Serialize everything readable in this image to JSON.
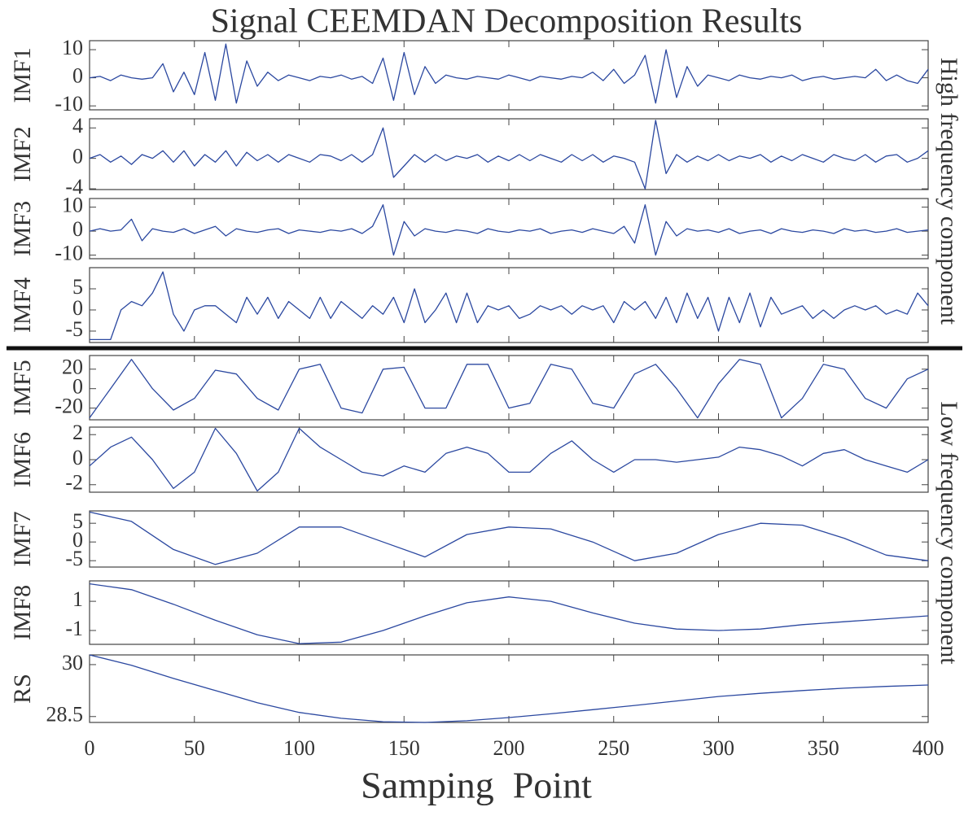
{
  "chart_data": [
    {
      "type": "line",
      "title": "Signal CEEMDAN Decomposition Results",
      "ylabel": "IMF1",
      "color": "#2b48a0",
      "x": [
        0,
        5,
        10,
        15,
        20,
        25,
        30,
        35,
        40,
        45,
        50,
        55,
        60,
        65,
        70,
        75,
        80,
        85,
        90,
        95,
        100,
        105,
        110,
        115,
        120,
        125,
        130,
        135,
        140,
        145,
        150,
        155,
        160,
        165,
        170,
        175,
        180,
        185,
        190,
        195,
        200,
        205,
        210,
        215,
        220,
        225,
        230,
        235,
        240,
        245,
        250,
        255,
        260,
        265,
        270,
        275,
        280,
        285,
        290,
        295,
        300,
        305,
        310,
        315,
        320,
        325,
        330,
        335,
        340,
        345,
        350,
        355,
        360,
        365,
        370,
        375,
        380,
        385,
        390,
        395,
        400
      ],
      "values": [
        0,
        0.5,
        -1,
        1,
        0,
        -0.5,
        0,
        5,
        -5,
        2,
        -6,
        9,
        -8,
        12,
        -9,
        6,
        -3,
        2,
        -1,
        1,
        0,
        -1,
        0.5,
        0,
        1,
        -0.5,
        0.5,
        -2,
        7,
        -8,
        9,
        -6,
        4,
        -2,
        1,
        0,
        -0.5,
        0.5,
        0,
        -0.5,
        1,
        0,
        -1,
        0.5,
        0,
        -0.5,
        0.5,
        0,
        2,
        -1,
        3,
        -2,
        1,
        8,
        -9,
        10,
        -7,
        4,
        -3,
        1,
        0,
        -1,
        1,
        0,
        -0.5,
        0.5,
        0,
        1,
        -1,
        0,
        0.5,
        -0.5,
        0,
        0.5,
        0,
        3,
        -1,
        1,
        -1,
        -2,
        3
      ],
      "xlim": [
        0,
        400
      ],
      "xticks": [
        0,
        50,
        100,
        150,
        200,
        250,
        300,
        350,
        400
      ],
      "ylim": [
        -11.4,
        13.2
      ],
      "yticks": [
        -10,
        0,
        10
      ]
    },
    {
      "type": "line",
      "ylabel": "IMF2",
      "color": "#2b48a0",
      "x": [
        0,
        5,
        10,
        15,
        20,
        25,
        30,
        35,
        40,
        45,
        50,
        55,
        60,
        65,
        70,
        75,
        80,
        85,
        90,
        95,
        100,
        105,
        110,
        115,
        120,
        125,
        130,
        135,
        140,
        145,
        150,
        155,
        160,
        165,
        170,
        175,
        180,
        185,
        190,
        195,
        200,
        205,
        210,
        215,
        220,
        225,
        230,
        235,
        240,
        245,
        250,
        255,
        260,
        265,
        270,
        275,
        280,
        285,
        290,
        295,
        300,
        305,
        310,
        315,
        320,
        325,
        330,
        335,
        340,
        345,
        350,
        355,
        360,
        365,
        370,
        375,
        380,
        385,
        390,
        395,
        400
      ],
      "values": [
        0,
        0.5,
        -0.5,
        0.3,
        -0.8,
        0.5,
        0,
        1,
        -0.5,
        1,
        -1,
        0.5,
        -0.5,
        1,
        -1,
        0.8,
        -0.3,
        0.5,
        -0.5,
        0.5,
        0,
        -0.5,
        0.5,
        0.3,
        -0.3,
        0.5,
        -0.5,
        0.5,
        4,
        -2.5,
        -1,
        0.5,
        -0.5,
        0.5,
        -0.3,
        0.3,
        0,
        0.5,
        -0.5,
        0.3,
        -0.3,
        0.5,
        -0.3,
        0.5,
        0,
        -0.5,
        0.5,
        -0.3,
        0.5,
        -0.5,
        0.3,
        0,
        -0.5,
        -4,
        5,
        -2,
        0.5,
        -0.5,
        0.3,
        -0.3,
        0.5,
        -0.3,
        0.3,
        0,
        0.5,
        -0.5,
        0.3,
        -0.3,
        0.5,
        0,
        -0.5,
        0.5,
        0,
        -0.3,
        0.5,
        -0.5,
        0.3,
        0.5,
        -0.5,
        0,
        1
      ],
      "xlim": [
        0,
        400
      ],
      "xticks": [
        0,
        50,
        100,
        150,
        200,
        250,
        300,
        350,
        400
      ],
      "ylim": [
        -4.1,
        5.2
      ],
      "yticks": [
        -4,
        0,
        4
      ]
    },
    {
      "type": "line",
      "ylabel": "IMF3",
      "color": "#2b48a0",
      "x": [
        0,
        5,
        10,
        15,
        20,
        25,
        30,
        35,
        40,
        45,
        50,
        55,
        60,
        65,
        70,
        75,
        80,
        85,
        90,
        95,
        100,
        105,
        110,
        115,
        120,
        125,
        130,
        135,
        140,
        145,
        150,
        155,
        160,
        165,
        170,
        175,
        180,
        185,
        190,
        195,
        200,
        205,
        210,
        215,
        220,
        225,
        230,
        235,
        240,
        245,
        250,
        255,
        260,
        265,
        270,
        275,
        280,
        285,
        290,
        295,
        300,
        305,
        310,
        315,
        320,
        325,
        330,
        335,
        340,
        345,
        350,
        355,
        360,
        365,
        370,
        375,
        380,
        385,
        390,
        395,
        400
      ],
      "values": [
        0,
        1,
        0,
        0.5,
        5,
        -4,
        1,
        0,
        -0.5,
        1,
        -1,
        0.5,
        2,
        -2,
        1,
        0,
        -0.5,
        0.5,
        1,
        -1,
        0.5,
        0,
        -0.5,
        0.5,
        0,
        1,
        -1,
        2,
        11,
        -10,
        4,
        -2,
        1,
        0,
        -0.5,
        0.5,
        0,
        -1,
        1,
        0,
        -0.5,
        0.5,
        0,
        1,
        -1,
        0,
        0.5,
        -0.5,
        1,
        0,
        -1,
        2,
        -5,
        11,
        -10,
        4,
        -2,
        1,
        0,
        0.5,
        -0.5,
        1,
        -1,
        0,
        0.5,
        -1,
        1,
        0,
        -0.5,
        0.5,
        0,
        -1,
        1,
        0,
        0.5,
        -0.5,
        0,
        1,
        -0.5,
        0,
        0.5
      ],
      "xlim": [
        0,
        400
      ],
      "xticks": [
        0,
        50,
        100,
        150,
        200,
        250,
        300,
        350,
        400
      ],
      "ylim": [
        -11.5,
        13.6
      ],
      "yticks": [
        -10,
        0,
        10
      ]
    },
    {
      "type": "line",
      "ylabel": "IMF4",
      "color": "#2b48a0",
      "x": [
        0,
        5,
        10,
        15,
        20,
        25,
        30,
        35,
        40,
        45,
        50,
        55,
        60,
        65,
        70,
        75,
        80,
        85,
        90,
        95,
        100,
        105,
        110,
        115,
        120,
        125,
        130,
        135,
        140,
        145,
        150,
        155,
        160,
        165,
        170,
        175,
        180,
        185,
        190,
        195,
        200,
        205,
        210,
        215,
        220,
        225,
        230,
        235,
        240,
        245,
        250,
        255,
        260,
        265,
        270,
        275,
        280,
        285,
        290,
        295,
        300,
        305,
        310,
        315,
        320,
        325,
        330,
        335,
        340,
        345,
        350,
        355,
        360,
        365,
        370,
        375,
        380,
        385,
        390,
        395,
        400
      ],
      "values": [
        -7,
        -7,
        -7,
        0,
        2,
        1,
        4,
        9,
        -1,
        -5,
        0,
        1,
        1,
        -1,
        -3,
        3,
        -1,
        3,
        -2,
        2,
        0,
        -2,
        3,
        -2,
        2,
        0,
        -2,
        1,
        -1,
        3,
        -3,
        5,
        -3,
        0,
        4,
        -3,
        4,
        -3,
        1,
        0,
        1,
        -2,
        -1,
        1,
        0,
        1,
        -1,
        1,
        0,
        1,
        -3,
        2,
        0,
        2,
        -2,
        3,
        -3,
        4,
        -2,
        3,
        -5,
        3,
        -3,
        4,
        -4,
        3,
        -1,
        0,
        1,
        -2,
        0,
        -2,
        0,
        1,
        0,
        1,
        -1,
        0,
        -1,
        4,
        1
      ],
      "xlim": [
        0,
        400
      ],
      "xticks": [
        0,
        50,
        100,
        150,
        200,
        250,
        300,
        350,
        400
      ],
      "ylim": [
        -7.7,
        10
      ],
      "yticks": [
        -5,
        0,
        5
      ]
    },
    {
      "type": "line",
      "ylabel": "IMF5",
      "color": "#2b48a0",
      "x": [
        0,
        10,
        20,
        30,
        40,
        50,
        60,
        70,
        80,
        90,
        100,
        110,
        120,
        130,
        140,
        150,
        160,
        170,
        180,
        190,
        200,
        210,
        220,
        230,
        240,
        250,
        260,
        270,
        280,
        290,
        300,
        310,
        320,
        330,
        340,
        350,
        360,
        370,
        380,
        390,
        400
      ],
      "values": [
        -30,
        0,
        30,
        0,
        -22,
        -10,
        19,
        15,
        -10,
        -22,
        20,
        25,
        -20,
        -25,
        20,
        22,
        -20,
        -20,
        25,
        25,
        -20,
        -15,
        25,
        20,
        -15,
        -20,
        15,
        25,
        0,
        -30,
        5,
        30,
        25,
        -30,
        -10,
        25,
        20,
        -10,
        -20,
        10,
        20
      ],
      "xlim": [
        0,
        400
      ],
      "xticks": [
        0,
        50,
        100,
        150,
        200,
        250,
        300,
        350,
        400
      ],
      "ylim": [
        -32,
        34
      ],
      "yticks": [
        -20,
        0,
        20
      ]
    },
    {
      "type": "line",
      "ylabel": "IMF6",
      "color": "#2b48a0",
      "x": [
        0,
        10,
        20,
        30,
        40,
        50,
        60,
        70,
        80,
        90,
        100,
        110,
        120,
        130,
        140,
        150,
        160,
        170,
        180,
        190,
        200,
        210,
        220,
        230,
        240,
        250,
        260,
        270,
        280,
        290,
        300,
        310,
        320,
        330,
        340,
        350,
        360,
        370,
        380,
        390,
        400
      ],
      "values": [
        -0.5,
        1,
        1.8,
        0,
        -2.3,
        -1,
        2.5,
        0.5,
        -2.5,
        -1,
        2.5,
        1,
        0,
        -1,
        -1.3,
        -0.5,
        -1,
        0.5,
        1,
        0.5,
        -1,
        -1,
        0.5,
        1.5,
        0,
        -1,
        0,
        0,
        -0.2,
        0,
        0.2,
        1,
        0.8,
        0.3,
        -0.5,
        0.5,
        0.8,
        0,
        -0.5,
        -1,
        0
      ],
      "xlim": [
        0,
        400
      ],
      "xticks": [
        0,
        50,
        100,
        150,
        200,
        250,
        300,
        350,
        400
      ],
      "ylim": [
        -2.6,
        2.6
      ],
      "yticks": [
        -2,
        0,
        2
      ]
    },
    {
      "type": "line",
      "ylabel": "IMF7",
      "color": "#2b48a0",
      "x": [
        0,
        20,
        40,
        60,
        80,
        100,
        120,
        140,
        160,
        180,
        200,
        220,
        240,
        260,
        280,
        300,
        320,
        340,
        360,
        380,
        400
      ],
      "values": [
        8,
        5.5,
        -2,
        -6,
        -3,
        4,
        4,
        0,
        -4,
        2,
        4,
        3.5,
        0,
        -5,
        -3,
        2,
        5,
        4.5,
        1,
        -3.5,
        -5
      ],
      "xlim": [
        0,
        400
      ],
      "xticks": [
        0,
        50,
        100,
        150,
        200,
        250,
        300,
        350,
        400
      ],
      "ylim": [
        -6.7,
        8.3
      ],
      "yticks": [
        -5,
        0,
        5
      ]
    },
    {
      "type": "line",
      "ylabel": "IMF8",
      "color": "#2b48a0",
      "x": [
        0,
        20,
        40,
        60,
        80,
        100,
        120,
        140,
        160,
        180,
        200,
        220,
        240,
        260,
        280,
        300,
        320,
        340,
        360,
        380,
        400
      ],
      "values": [
        2.2,
        1.8,
        0.8,
        -0.3,
        -1.3,
        -1.9,
        -1.8,
        -1,
        0,
        0.9,
        1.3,
        1,
        0.2,
        -0.5,
        -0.9,
        -1,
        -0.9,
        -0.6,
        -0.4,
        -0.2,
        0
      ],
      "xlim": [
        0,
        400
      ],
      "xticks": [
        0,
        50,
        100,
        150,
        200,
        250,
        300,
        350,
        400
      ],
      "ylim": [
        -1.95,
        2.4
      ],
      "yticks": [
        -1,
        1
      ]
    },
    {
      "type": "line",
      "ylabel": "RS",
      "xlabel": "Samping  Point",
      "color": "#2b48a0",
      "x": [
        0,
        20,
        40,
        60,
        80,
        100,
        120,
        140,
        160,
        180,
        200,
        220,
        240,
        260,
        280,
        300,
        320,
        340,
        360,
        380,
        400
      ],
      "values": [
        30.28,
        29.98,
        29.6,
        29.25,
        28.9,
        28.62,
        28.45,
        28.35,
        28.33,
        28.38,
        28.47,
        28.58,
        28.7,
        28.82,
        28.95,
        29.08,
        29.17,
        29.25,
        29.32,
        29.37,
        29.41
      ],
      "xlim": [
        0,
        400
      ],
      "xticks": [
        0,
        50,
        100,
        150,
        200,
        250,
        300,
        350,
        400
      ],
      "ylim": [
        28.33,
        30.28
      ],
      "yticks": [
        28.5,
        30
      ]
    }
  ],
  "annotations": [
    "High frequency component",
    "Low frequency component"
  ]
}
